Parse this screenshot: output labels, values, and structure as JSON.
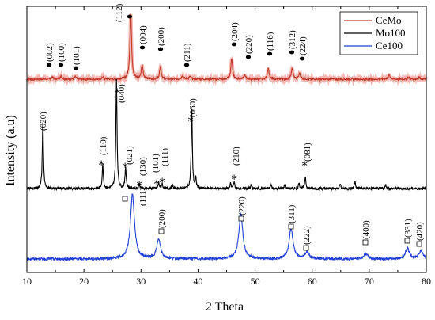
{
  "chart_data": {
    "type": "line",
    "xlabel": "2 Theta",
    "ylabel": "Intensity (a.u)",
    "xlim": [
      10,
      80
    ],
    "x_ticks": [
      "10",
      "20",
      "30",
      "40",
      "50",
      "60",
      "70",
      "80"
    ],
    "grid": false,
    "legend_position": "top-right",
    "legend": [
      {
        "label": "CeMo",
        "color": "#c0392b"
      },
      {
        "label": "Mo100",
        "color": "#000000"
      },
      {
        "label": "Ce100",
        "color": "#1f3fd6"
      }
    ],
    "series": [
      {
        "name": "CeMo",
        "color": "#c0392b",
        "baseline": 0.0,
        "peaks": [
          [
            14.5,
            0.04
          ],
          [
            16.0,
            0.05
          ],
          [
            18.5,
            0.04
          ],
          [
            23.3,
            0.03
          ],
          [
            28.2,
            1.0
          ],
          [
            30.2,
            0.22
          ],
          [
            33.4,
            0.2
          ],
          [
            37.3,
            0.06
          ],
          [
            38.6,
            0.04
          ],
          [
            45.9,
            0.32
          ],
          [
            48.2,
            0.07
          ],
          [
            52.3,
            0.17
          ],
          [
            56.5,
            0.17
          ],
          [
            57.8,
            0.09
          ],
          [
            73.5,
            0.07
          ],
          [
            76.9,
            0.03
          ],
          [
            78.8,
            0.03
          ]
        ],
        "peak_labels": [
          "(002)",
          "(100)",
          "(101)",
          "(112)",
          "(004)",
          "(200)",
          "(211)",
          "(204)",
          "(220)",
          "(116)",
          "(312)",
          "(224)"
        ]
      },
      {
        "name": "Mo100",
        "color": "#000000",
        "baseline": 0.0,
        "peaks": [
          [
            12.8,
            0.55
          ],
          [
            23.3,
            0.2
          ],
          [
            25.7,
            0.92
          ],
          [
            27.3,
            0.18
          ],
          [
            29.7,
            0.04
          ],
          [
            33.1,
            0.05
          ],
          [
            33.7,
            0.04
          ],
          [
            35.5,
            0.03
          ],
          [
            38.9,
            0.66
          ],
          [
            39.6,
            0.08
          ],
          [
            45.7,
            0.04
          ],
          [
            46.3,
            0.06
          ],
          [
            49.3,
            0.03
          ],
          [
            52.8,
            0.03
          ],
          [
            55.2,
            0.03
          ],
          [
            57.7,
            0.05
          ],
          [
            58.8,
            0.1
          ],
          [
            64.9,
            0.04
          ],
          [
            67.5,
            0.06
          ],
          [
            72.9,
            0.03
          ]
        ],
        "peak_labels": [
          "(020)",
          "(110)",
          "(040)",
          "(021)",
          "(130)",
          "(101)",
          "(111)",
          "(060)",
          "(210)",
          "(081)"
        ]
      },
      {
        "name": "Ce100",
        "color": "#1f3fd6",
        "baseline": 0.0,
        "peaks": [
          [
            28.5,
            0.78
          ],
          [
            33.1,
            0.23
          ],
          [
            47.5,
            0.54
          ],
          [
            56.3,
            0.36
          ],
          [
            59.1,
            0.08
          ],
          [
            69.4,
            0.06
          ],
          [
            76.7,
            0.13
          ],
          [
            79.1,
            0.1
          ]
        ],
        "peak_labels": [
          "(111)",
          "(200)",
          "(220)",
          "(311)",
          "(222)",
          "(400)",
          "(331)",
          "(420)"
        ]
      }
    ]
  }
}
